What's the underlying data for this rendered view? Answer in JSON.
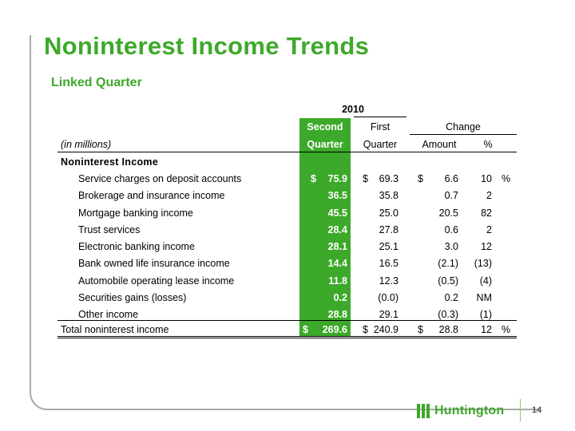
{
  "header": {
    "title": "Noninterest Income Trends",
    "subtitle": "Linked Quarter"
  },
  "table": {
    "year_header": "2010",
    "col_second_line1": "Second",
    "col_second_line2": "Quarter",
    "col_first_line1": "First",
    "col_first_line2": "Quarter",
    "change_header": "Change",
    "col_amount": "Amount",
    "col_pct": "%",
    "units_label": "(in millions)",
    "section_label": "Noninterest Income",
    "rows": [
      {
        "label": "Service charges on deposit accounts",
        "second_prefix": "$",
        "second": "75.9",
        "first_prefix": "$",
        "first": "69.3",
        "amount_prefix": "$",
        "amount": "6.6",
        "pct": "10",
        "pct_suffix": "%"
      },
      {
        "label": "Brokerage and insurance income",
        "second_prefix": "",
        "second": "36.5",
        "first_prefix": "",
        "first": "35.8",
        "amount_prefix": "",
        "amount": "0.7",
        "pct": "2",
        "pct_suffix": ""
      },
      {
        "label": "Mortgage banking income",
        "second_prefix": "",
        "second": "45.5",
        "first_prefix": "",
        "first": "25.0",
        "amount_prefix": "",
        "amount": "20.5",
        "pct": "82",
        "pct_suffix": ""
      },
      {
        "label": "Trust services",
        "second_prefix": "",
        "second": "28.4",
        "first_prefix": "",
        "first": "27.8",
        "amount_prefix": "",
        "amount": "0.6",
        "pct": "2",
        "pct_suffix": ""
      },
      {
        "label": "Electronic banking income",
        "second_prefix": "",
        "second": "28.1",
        "first_prefix": "",
        "first": "25.1",
        "amount_prefix": "",
        "amount": "3.0",
        "pct": "12",
        "pct_suffix": ""
      },
      {
        "label": "Bank owned life insurance income",
        "second_prefix": "",
        "second": "14.4",
        "first_prefix": "",
        "first": "16.5",
        "amount_prefix": "",
        "amount": "(2.1)",
        "pct": "(13)",
        "pct_suffix": ""
      },
      {
        "label": "Automobile operating lease income",
        "second_prefix": "",
        "second": "11.8",
        "first_prefix": "",
        "first": "12.3",
        "amount_prefix": "",
        "amount": "(0.5)",
        "pct": "(4)",
        "pct_suffix": ""
      },
      {
        "label": "Securities gains (losses)",
        "second_prefix": "",
        "second": "0.2",
        "first_prefix": "",
        "first": "(0.0)",
        "amount_prefix": "",
        "amount": "0.2",
        "pct": "NM",
        "pct_suffix": ""
      },
      {
        "label": "Other income",
        "second_prefix": "",
        "second": "28.8",
        "first_prefix": "",
        "first": "29.1",
        "amount_prefix": "",
        "amount": "(0.3)",
        "pct": "(1)",
        "pct_suffix": ""
      }
    ],
    "total": {
      "label": "Total noninterest income",
      "second_prefix": "$",
      "second": "269.6",
      "first_prefix": "$",
      "first": "240.9",
      "amount_prefix": "$",
      "amount": "28.8",
      "pct": "12",
      "pct_suffix": "%"
    }
  },
  "footer": {
    "logo_text": "Huntington",
    "page_number": "14"
  }
}
